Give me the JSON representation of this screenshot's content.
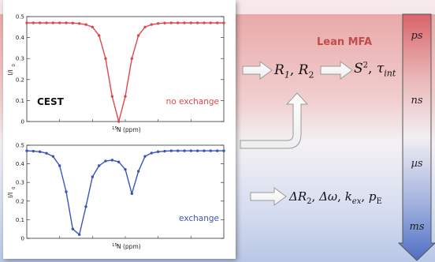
{
  "lean_mfa_title": "Lean MFA",
  "timescale_labels": [
    "ps",
    "ns",
    "µs",
    "ms"
  ],
  "top_plot": {
    "panel_label": "CEST",
    "annotation": "no exchange",
    "annotation_color": "#e0474c",
    "ylabel": "I/I",
    "ylabel_sub": "0",
    "xlabel_iso": "15",
    "xlabel_rest": "N (ppm)",
    "yticks": [
      "0",
      "0.1",
      "0.2",
      "0.3",
      "0.4",
      "0.5"
    ]
  },
  "bottom_plot": {
    "annotation": "exchange",
    "annotation_color": "#3a55b8",
    "ylabel": "I/I",
    "ylabel_sub": "0",
    "xlabel_iso": "15",
    "xlabel_rest": "N (ppm)",
    "yticks": [
      "0",
      "0.1",
      "0.2",
      "0.3",
      "0.4",
      "0.5"
    ]
  },
  "chart_data": [
    {
      "type": "line",
      "title": "",
      "xlabel": "15N (ppm)",
      "ylabel": "I/I0",
      "ylim": [
        0,
        0.5
      ],
      "series": [
        {
          "name": "no exchange",
          "color": "#e0474c",
          "x": [
            0,
            1,
            2,
            3,
            4,
            5,
            6,
            7,
            8,
            9,
            10,
            11,
            12,
            13,
            14,
            15,
            16,
            17,
            18,
            19,
            20,
            21,
            22,
            23,
            24,
            25,
            26,
            27,
            28,
            29,
            30
          ],
          "y": [
            0.47,
            0.47,
            0.47,
            0.47,
            0.47,
            0.47,
            0.47,
            0.469,
            0.467,
            0.462,
            0.45,
            0.41,
            0.3,
            0.12,
            0.0,
            0.12,
            0.3,
            0.41,
            0.45,
            0.462,
            0.467,
            0.469,
            0.47,
            0.47,
            0.47,
            0.47,
            0.47,
            0.47,
            0.47,
            0.47,
            0.47
          ]
        }
      ]
    },
    {
      "type": "line",
      "title": "",
      "xlabel": "15N (ppm)",
      "ylabel": "I/I0",
      "ylim": [
        0,
        0.5
      ],
      "series": [
        {
          "name": "exchange",
          "color": "#3a55b8",
          "x": [
            0,
            1,
            2,
            3,
            4,
            5,
            6,
            7,
            8,
            9,
            10,
            11,
            12,
            13,
            14,
            15,
            16,
            17,
            18,
            19,
            20,
            21,
            22,
            23,
            24,
            25,
            26,
            27,
            28,
            29,
            30
          ],
          "y": [
            0.47,
            0.468,
            0.465,
            0.457,
            0.44,
            0.39,
            0.25,
            0.05,
            0.02,
            0.17,
            0.33,
            0.39,
            0.415,
            0.42,
            0.41,
            0.37,
            0.24,
            0.36,
            0.44,
            0.458,
            0.465,
            0.468,
            0.47,
            0.47,
            0.47,
            0.47,
            0.47,
            0.47,
            0.47,
            0.47,
            0.47
          ]
        }
      ]
    }
  ]
}
